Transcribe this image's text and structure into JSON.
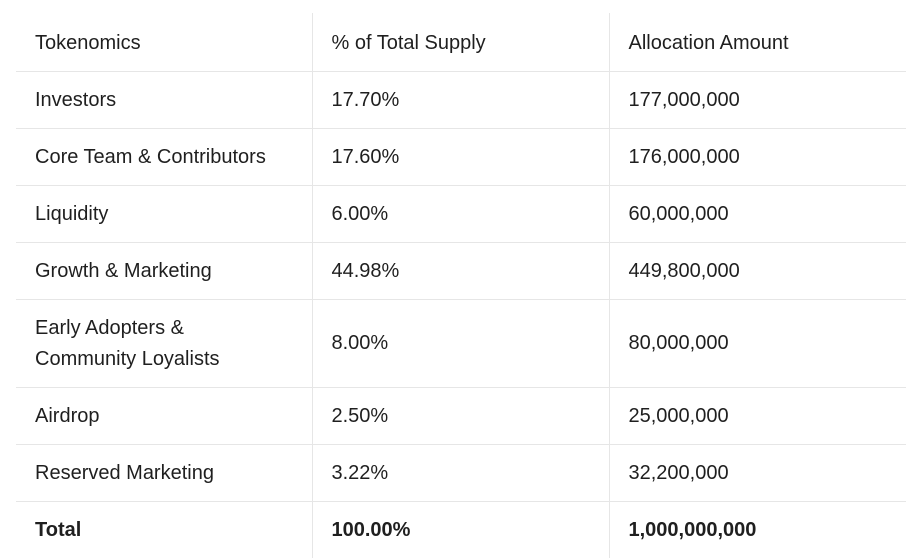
{
  "table": {
    "headers": [
      "Tokenomics",
      "% of Total Supply",
      "Allocation Amount"
    ],
    "rows": [
      [
        "Investors",
        "17.70%",
        "177,000,000"
      ],
      [
        "Core Team & Contributors",
        "17.60%",
        "176,000,000"
      ],
      [
        "Liquidity",
        "6.00%",
        "60,000,000"
      ],
      [
        "Growth & Marketing",
        "44.98%",
        "449,800,000"
      ],
      [
        "Early Adopters &\nCommunity Loyalists",
        "8.00%",
        "80,000,000"
      ],
      [
        "Airdrop",
        "2.50%",
        "25,000,000"
      ],
      [
        "Reserved Marketing",
        "3.22%",
        "32,200,000"
      ]
    ],
    "total": [
      "Total",
      "100.00%",
      "1,000,000,000"
    ]
  }
}
